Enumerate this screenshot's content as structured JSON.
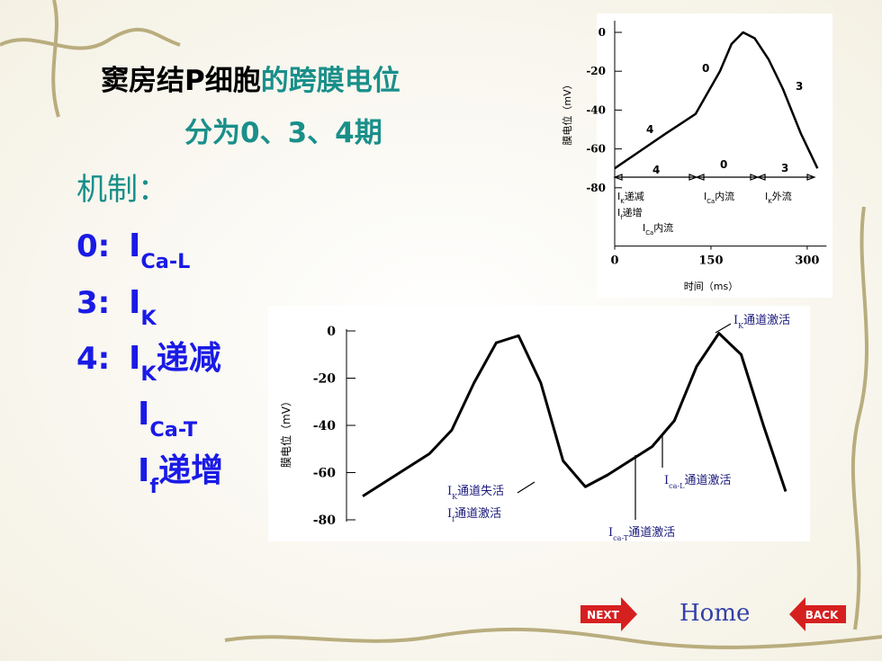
{
  "title": {
    "part1": "窦房结P细胞",
    "part2": "的跨膜电位",
    "line2": "分为0、3、4期"
  },
  "mechanism": {
    "heading": "机制：",
    "items": [
      {
        "label": "0:",
        "segments": [
          {
            "text": "I"
          },
          {
            "text": "Ca-L",
            "sub": true
          }
        ]
      },
      {
        "label": "3:",
        "segments": [
          {
            "text": "I"
          },
          {
            "text": "K",
            "sub": true
          }
        ]
      },
      {
        "label": "4:",
        "segments": [
          {
            "text": "I"
          },
          {
            "text": "K",
            "sub": true
          },
          {
            "text": "递减"
          }
        ]
      },
      {
        "segments": [
          {
            "text": "I"
          },
          {
            "text": "Ca-T",
            "sub": true
          }
        ]
      },
      {
        "segments": [
          {
            "text": "I"
          },
          {
            "text": "f",
            "sub": true
          },
          {
            "text": "递增"
          }
        ]
      }
    ]
  },
  "nav": {
    "next": "NEXT",
    "home": "Home",
    "back": "BACK"
  },
  "chart_data": [
    {
      "type": "line",
      "y_label": "膜电位（mV）",
      "x_label": "时间（ms）",
      "x": [
        0,
        40,
        80,
        126,
        145,
        164,
        182,
        200,
        218,
        240,
        262,
        290,
        316
      ],
      "values": [
        -70,
        -61,
        -52,
        -42,
        -31,
        -20,
        -6,
        0,
        -3,
        -14,
        -29,
        -52,
        -70
      ],
      "color": "#000000",
      "xlim": [
        0,
        330
      ],
      "ylim": [
        -110,
        6
      ],
      "xticks": [
        0,
        150,
        300
      ],
      "yticks": [
        0,
        -20,
        -40,
        -60,
        -80
      ],
      "annotations": [
        [
          {
            "text": "0"
          }
        ],
        [
          {
            "text": "3"
          }
        ],
        [
          {
            "text": "4"
          }
        ],
        [
          {
            "text": "4"
          }
        ],
        [
          {
            "text": "0"
          }
        ],
        [
          {
            "text": "3"
          }
        ],
        [
          {
            "text": "I"
          },
          {
            "text": "K",
            "sub": true
          },
          {
            "text": "递减"
          }
        ],
        [
          {
            "text": "I"
          },
          {
            "text": "f",
            "sub": true
          },
          {
            "text": "递增"
          }
        ],
        [
          {
            "text": "I"
          },
          {
            "text": "Ca",
            "sub": true
          },
          {
            "text": "内流"
          }
        ],
        [
          {
            "text": "I"
          },
          {
            "text": "Ca",
            "sub": true
          },
          {
            "text": "内流"
          }
        ],
        [
          {
            "text": "I"
          },
          {
            "text": "K",
            "sub": true
          },
          {
            "text": "外流"
          }
        ]
      ]
    },
    {
      "type": "line",
      "y_label": "膜电位（mV）",
      "values": [
        -70,
        -64,
        -58,
        -52,
        -42,
        -22,
        -5,
        -2,
        -22,
        -55,
        -66,
        -61,
        -55,
        -49,
        -38,
        -15,
        -1,
        -10,
        -40,
        -68
      ],
      "color": "#000000",
      "ylim": [
        -80,
        0
      ],
      "yticks": [
        0,
        -20,
        -40,
        -60,
        -80
      ],
      "annotations": [
        [
          {
            "text": "I"
          },
          {
            "text": "K",
            "sub": true
          },
          {
            "text": "通道激活"
          }
        ],
        [
          {
            "text": "I"
          },
          {
            "text": "K",
            "sub": true
          },
          {
            "text": "通道失活"
          }
        ],
        [
          {
            "text": "I"
          },
          {
            "text": "f",
            "sub": true
          },
          {
            "text": "通道激活"
          }
        ],
        [
          {
            "text": "I"
          },
          {
            "text": "ca-L",
            "sub": true
          },
          {
            "text": "通道激活"
          }
        ],
        [
          {
            "text": "I"
          },
          {
            "text": "ca-T",
            "sub": true
          },
          {
            "text": "通道激活"
          }
        ]
      ]
    }
  ]
}
